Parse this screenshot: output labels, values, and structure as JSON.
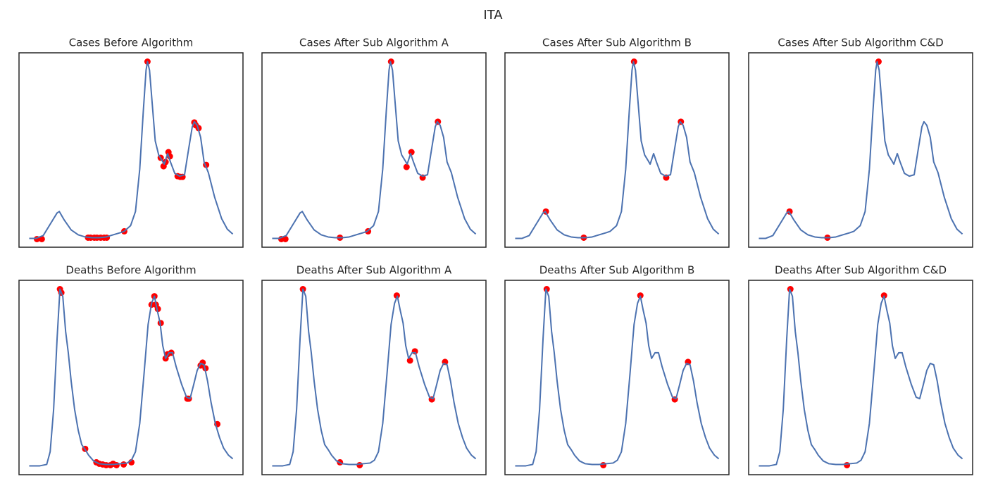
{
  "title": "ITA",
  "chart_data": [
    {
      "type": "line",
      "title": "Cases Before Algorithm",
      "xlim": [
        -5,
        105
      ],
      "ylim": [
        -5,
        105
      ],
      "series": [
        {
          "color": "#4c72b0",
          "x": [
            0,
            3.4,
            6.9,
            10.3,
            13.7,
            14.8,
            17.2,
            20.6,
            24.1,
            27.5,
            30.9,
            34.4,
            37.8,
            41.2,
            44.7,
            46.7,
            49.8,
            52.2,
            54.3,
            56,
            57.4,
            58.1,
            59.1,
            60.5,
            61.9,
            63.6,
            65.3,
            66.3,
            68,
            69.4,
            71.5,
            73.9,
            76.3,
            78.4,
            80.1,
            81.1,
            82.5,
            84.2,
            85.9,
            88,
            91.1,
            94.5,
            97.3,
            100
          ],
          "values": [
            0,
            0,
            1.6,
            8,
            14.4,
            15.2,
            10.4,
            4.8,
            2,
            0.8,
            0.4,
            0.4,
            0.8,
            2,
            3.2,
            4,
            7.2,
            15.2,
            39.2,
            71.2,
            95.2,
            100,
            95.2,
            75.2,
            55.2,
            47.2,
            44,
            42,
            48,
            43.2,
            36.8,
            35.2,
            36,
            51.2,
            63.2,
            66,
            64,
            57.2,
            43.2,
            37.2,
            23.2,
            11.2,
            5.2,
            2.4
          ]
        },
        {
          "type": "scatter",
          "color": "#ff0000",
          "x": [
            3.8,
            6.2,
            28.9,
            30.2,
            32,
            33.3,
            35.1,
            36.8,
            38.1,
            46.7,
            58.1,
            64.6,
            66,
            67,
            68.4,
            69.1,
            72.9,
            74.2,
            75.3,
            81.1,
            81.8,
            83.2,
            86.9
          ],
          "values": [
            -0.4,
            -0.4,
            0.4,
            0.4,
            0.4,
            0.4,
            0.4,
            0.4,
            0.4,
            4,
            100,
            45.6,
            40.8,
            43.2,
            48.8,
            46.4,
            35.2,
            34.8,
            34.8,
            65.6,
            64,
            62.4,
            41.6
          ]
        }
      ]
    },
    {
      "type": "line",
      "title": "Cases After Sub Algorithm A",
      "xlim": [
        -5,
        105
      ],
      "ylim": [
        -5,
        105
      ],
      "series": [
        {
          "color": "#4c72b0",
          "x": [
            0,
            3.4,
            6.9,
            10.3,
            13.7,
            14.8,
            17.2,
            20.6,
            24.1,
            27.5,
            30.9,
            34.4,
            37.8,
            41.2,
            44.7,
            46.7,
            49.8,
            52.2,
            54.3,
            56,
            57.4,
            58.1,
            59.1,
            60.5,
            61.9,
            63.6,
            65.3,
            66.3,
            68,
            69.4,
            71.5,
            73.9,
            76.3,
            78.4,
            80.1,
            81.1,
            82.5,
            84.2,
            85.9,
            88,
            91.1,
            94.5,
            97.3,
            100
          ],
          "values": [
            0,
            0,
            1.6,
            8,
            14.4,
            15.2,
            10.4,
            4.8,
            2,
            0.8,
            0.4,
            0.4,
            0.8,
            2,
            3.2,
            4,
            7.2,
            15.2,
            39.2,
            71.2,
            95.2,
            100,
            95.2,
            75.2,
            55.2,
            47.2,
            44,
            42,
            48,
            43.2,
            36.8,
            35.2,
            36,
            51.2,
            63.2,
            66,
            64,
            57.2,
            43.2,
            37.2,
            23.2,
            11.2,
            5.2,
            2.4
          ]
        },
        {
          "type": "scatter",
          "color": "#ff0000",
          "x": [
            4.5,
            6.5,
            33.3,
            47.1,
            58.4,
            66,
            68.4,
            73.9,
            81.4
          ],
          "values": [
            -0.4,
            -0.4,
            0.4,
            4,
            100,
            40.4,
            48.8,
            34.4,
            66
          ]
        }
      ]
    },
    {
      "type": "line",
      "title": "Cases After Sub Algorithm B",
      "xlim": [
        -5,
        105
      ],
      "ylim": [
        -5,
        105
      ],
      "series": [
        {
          "color": "#4c72b0",
          "x": [
            0,
            3.4,
            6.9,
            10.3,
            13.7,
            14.8,
            17.2,
            20.6,
            24.1,
            27.5,
            30.9,
            34.4,
            37.8,
            41.2,
            44.7,
            46.7,
            49.8,
            52.2,
            54.3,
            56,
            57.4,
            58.1,
            59.1,
            60.5,
            61.9,
            63.6,
            65.3,
            66.3,
            68,
            69.4,
            71.5,
            73.9,
            76.3,
            78.4,
            80.1,
            81.1,
            82.5,
            84.2,
            85.9,
            88,
            91.1,
            94.5,
            97.3,
            100
          ],
          "values": [
            0,
            0,
            1.6,
            8,
            14.4,
            15.2,
            10.4,
            4.8,
            2,
            0.8,
            0.4,
            0.4,
            0.8,
            2,
            3.2,
            4,
            7.2,
            15.2,
            39.2,
            71.2,
            95.2,
            100,
            95.2,
            75.2,
            55.2,
            47.2,
            44,
            42,
            48,
            43.2,
            36.8,
            35.2,
            36,
            51.2,
            63.2,
            66,
            64,
            57.2,
            43.2,
            37.2,
            23.2,
            11.2,
            5.2,
            2.4
          ]
        },
        {
          "type": "scatter",
          "color": "#ff0000",
          "x": [
            15.1,
            33.7,
            58.4,
            74.2,
            81.4
          ],
          "values": [
            15.2,
            0.4,
            100,
            34.4,
            66
          ]
        }
      ]
    },
    {
      "type": "line",
      "title": "Cases After Sub Algorithm C&D",
      "xlim": [
        -5,
        105
      ],
      "ylim": [
        -5,
        105
      ],
      "series": [
        {
          "color": "#4c72b0",
          "x": [
            0,
            3.4,
            6.9,
            10.3,
            13.7,
            14.8,
            17.2,
            20.6,
            24.1,
            27.5,
            30.9,
            34.4,
            37.8,
            41.2,
            44.7,
            46.7,
            49.8,
            52.2,
            54.3,
            56,
            57.4,
            58.1,
            59.1,
            60.5,
            61.9,
            63.6,
            65.3,
            66.3,
            68,
            69.4,
            71.5,
            73.9,
            76.3,
            78.4,
            80.1,
            81.1,
            82.5,
            84.2,
            85.9,
            88,
            91.1,
            94.5,
            97.3,
            100
          ],
          "values": [
            0,
            0,
            1.6,
            8,
            14.4,
            15.2,
            10.4,
            4.8,
            2,
            0.8,
            0.4,
            0.4,
            0.8,
            2,
            3.2,
            4,
            7.2,
            15.2,
            39.2,
            71.2,
            95.2,
            100,
            95.2,
            75.2,
            55.2,
            47.2,
            44,
            42,
            48,
            43.2,
            36.8,
            35.2,
            36,
            51.2,
            63.2,
            66,
            64,
            57.2,
            43.2,
            37.2,
            23.2,
            11.2,
            5.2,
            2.4
          ]
        },
        {
          "type": "scatter",
          "color": "#ff0000",
          "x": [
            15.1,
            33.7,
            58.8
          ],
          "values": [
            15.2,
            0.4,
            100
          ]
        }
      ]
    },
    {
      "type": "line",
      "title": "Deaths Before Algorithm",
      "xlim": [
        -5,
        105
      ],
      "ylim": [
        -5,
        105
      ],
      "series": [
        {
          "color": "#4c72b0",
          "x": [
            0,
            5.2,
            8.6,
            10.3,
            12,
            13.7,
            15.1,
            16.5,
            17.9,
            19.2,
            20.6,
            22.3,
            24.1,
            25.8,
            27.5,
            29.2,
            31.6,
            34.4,
            37.8,
            41.2,
            44.7,
            48.1,
            50.2,
            52.2,
            54.3,
            56.4,
            58.4,
            60.1,
            61.5,
            62.9,
            64.3,
            65.6,
            67,
            68.7,
            70.4,
            72.2,
            74.9,
            77.3,
            79,
            80.8,
            82.5,
            84.2,
            85.9,
            87.6,
            89.3,
            91.4,
            93.5,
            95.5,
            97.9,
            100
          ],
          "values": [
            0,
            0,
            0.8,
            8,
            32,
            72,
            100,
            96,
            76,
            64,
            48,
            32,
            20,
            12,
            9.2,
            6,
            2.8,
            1.2,
            0.8,
            0.8,
            1.2,
            1.6,
            3.2,
            8,
            24,
            52,
            80,
            92,
            96,
            88,
            80.8,
            68,
            60.8,
            64,
            64,
            56,
            46,
            38.8,
            38,
            46,
            54,
            58,
            57.2,
            48,
            36,
            24,
            16,
            10,
            6,
            4
          ]
        },
        {
          "type": "scatter",
          "color": "#ff0000",
          "x": [
            15.1,
            15.8,
            27.5,
            33,
            34.4,
            36.1,
            37.8,
            39.9,
            41.2,
            42.9,
            46.4,
            50.2,
            60.1,
            61.5,
            62.2,
            63.2,
            64.6,
            67,
            68,
            69.8,
            77.7,
            78.4,
            84.2,
            85.2,
            86.6,
            92.4
          ],
          "values": [
            100,
            98,
            9.6,
            2,
            1.2,
            0.8,
            0.4,
            0.4,
            1.2,
            0.4,
            0.8,
            2,
            91.2,
            96,
            91.2,
            88.8,
            80.8,
            60.8,
            63.2,
            64,
            38,
            38,
            56.8,
            58.4,
            55.2,
            23.6
          ]
        }
      ]
    },
    {
      "type": "line",
      "title": "Deaths After Sub Algorithm A",
      "xlim": [
        -5,
        105
      ],
      "ylim": [
        -5,
        105
      ],
      "series": [
        {
          "color": "#4c72b0",
          "x": [
            0,
            5.2,
            8.6,
            10.3,
            12,
            13.7,
            15.1,
            16.5,
            17.9,
            19.2,
            20.6,
            22.3,
            24.1,
            25.8,
            27.5,
            29.2,
            31.6,
            34.4,
            37.8,
            41.2,
            44.7,
            48.1,
            50.2,
            52.2,
            54.3,
            56.4,
            58.4,
            60.1,
            61.5,
            62.9,
            64.3,
            65.6,
            67,
            68.7,
            70.4,
            72.2,
            74.9,
            77.3,
            79,
            80.8,
            82.5,
            84.2,
            85.9,
            87.6,
            89.3,
            91.4,
            93.5,
            95.5,
            97.9,
            100
          ],
          "values": [
            0,
            0,
            0.8,
            8,
            32,
            72,
            100,
            96,
            76,
            64,
            48,
            32,
            20,
            12,
            9.2,
            6,
            2.8,
            1.2,
            0.8,
            0.8,
            1.2,
            1.6,
            3.2,
            8,
            24,
            52,
            80,
            92,
            96,
            88,
            80.8,
            68,
            60.8,
            64,
            64,
            56,
            46,
            38.8,
            38,
            46,
            54,
            58,
            57.2,
            48,
            36,
            24,
            16,
            10,
            6,
            4
          ]
        },
        {
          "type": "scatter",
          "color": "#ff0000",
          "x": [
            15.1,
            33.3,
            43,
            61.2,
            67.7,
            70.1,
            78.4,
            84.9
          ],
          "values": [
            100,
            2,
            0.4,
            96.4,
            59.6,
            64.8,
            37.6,
            58.8
          ]
        }
      ]
    },
    {
      "type": "line",
      "title": "Deaths After Sub Algorithm B",
      "xlim": [
        -5,
        105
      ],
      "ylim": [
        -5,
        105
      ],
      "series": [
        {
          "color": "#4c72b0",
          "x": [
            0,
            5.2,
            8.6,
            10.3,
            12,
            13.7,
            15.1,
            16.5,
            17.9,
            19.2,
            20.6,
            22.3,
            24.1,
            25.8,
            27.5,
            29.2,
            31.6,
            34.4,
            37.8,
            41.2,
            44.7,
            48.1,
            50.2,
            52.2,
            54.3,
            56.4,
            58.4,
            60.1,
            61.5,
            62.9,
            64.3,
            65.6,
            67,
            68.7,
            70.4,
            72.2,
            74.9,
            77.3,
            79,
            80.8,
            82.5,
            84.2,
            85.9,
            87.6,
            89.3,
            91.4,
            93.5,
            95.5,
            97.9,
            100
          ],
          "values": [
            0,
            0,
            0.8,
            8,
            32,
            72,
            100,
            96,
            76,
            64,
            48,
            32,
            20,
            12,
            9.2,
            6,
            2.8,
            1.2,
            0.8,
            0.8,
            1.2,
            1.6,
            3.2,
            8,
            24,
            52,
            80,
            92,
            96,
            88,
            80.8,
            68,
            60.8,
            64,
            64,
            56,
            46,
            38.8,
            38,
            46,
            54,
            58,
            57.2,
            48,
            36,
            24,
            16,
            10,
            6,
            4
          ]
        },
        {
          "type": "scatter",
          "color": "#ff0000",
          "x": [
            15.5,
            43.3,
            61.5,
            78.4,
            84.9
          ],
          "values": [
            100,
            0.4,
            96.4,
            37.6,
            58.8
          ]
        }
      ]
    },
    {
      "type": "line",
      "title": "Deaths After Sub Algorithm C&D",
      "xlim": [
        -5,
        105
      ],
      "ylim": [
        -5,
        105
      ],
      "series": [
        {
          "color": "#4c72b0",
          "x": [
            0,
            5.2,
            8.6,
            10.3,
            12,
            13.7,
            15.1,
            16.5,
            17.9,
            19.2,
            20.6,
            22.3,
            24.1,
            25.8,
            27.5,
            29.2,
            31.6,
            34.4,
            37.8,
            41.2,
            44.7,
            48.1,
            50.2,
            52.2,
            54.3,
            56.4,
            58.4,
            60.1,
            61.5,
            62.9,
            64.3,
            65.6,
            67,
            68.7,
            70.4,
            72.2,
            74.9,
            77.3,
            79,
            80.8,
            82.5,
            84.2,
            85.9,
            87.6,
            89.3,
            91.4,
            93.5,
            95.5,
            97.9,
            100
          ],
          "values": [
            0,
            0,
            0.8,
            8,
            32,
            72,
            100,
            96,
            76,
            64,
            48,
            32,
            20,
            12,
            9.2,
            6,
            2.8,
            1.2,
            0.8,
            0.8,
            1.2,
            1.6,
            3.2,
            8,
            24,
            52,
            80,
            92,
            96,
            88,
            80.8,
            68,
            60.8,
            64,
            64,
            56,
            46,
            38.8,
            38,
            46,
            54,
            58,
            57.2,
            48,
            36,
            24,
            16,
            10,
            6,
            4
          ]
        },
        {
          "type": "scatter",
          "color": "#ff0000",
          "x": [
            15.5,
            43.3,
            61.5
          ],
          "values": [
            100,
            0.4,
            96.4
          ]
        }
      ]
    }
  ]
}
